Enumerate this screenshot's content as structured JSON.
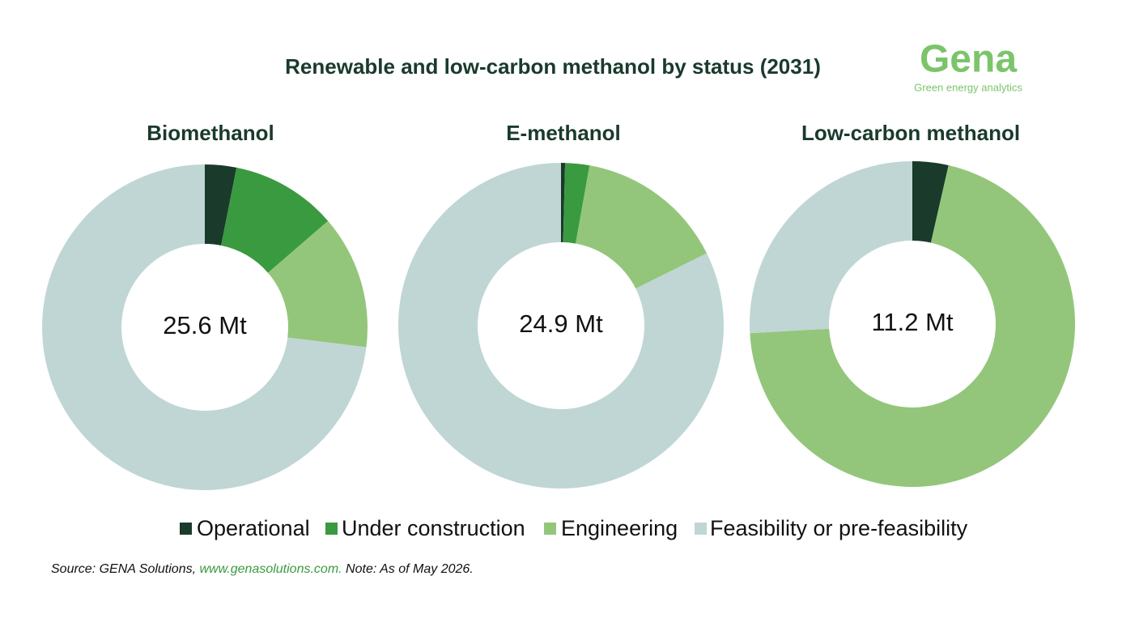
{
  "chart_data": [
    {
      "type": "donut",
      "title": "Biomethanol",
      "center_label": "25.6 Mt",
      "categories": [
        "Operational",
        "Under construction",
        "Engineering",
        "Feasibility or pre-feasibility"
      ],
      "colors": [
        "#1a3a2c",
        "#3a9a40",
        "#93c67b",
        "#bfd6d5"
      ],
      "values": [
        0.8,
        2.7,
        3.4,
        18.7
      ]
    },
    {
      "type": "donut",
      "title": "E-methanol",
      "center_label": "24.9 Mt",
      "categories": [
        "Operational",
        "Under construction",
        "Engineering",
        "Feasibility or pre-feasibility"
      ],
      "colors": [
        "#1a3a2c",
        "#3a9a40",
        "#93c67b",
        "#bfd6d5"
      ],
      "values": [
        0.1,
        0.6,
        3.7,
        20.5
      ]
    },
    {
      "type": "donut",
      "title": "Low-carbon methanol",
      "center_label": "11.2 Mt",
      "categories": [
        "Operational",
        "Under construction",
        "Engineering",
        "Feasibility or pre-feasibility"
      ],
      "colors": [
        "#1a3a2c",
        "#3a9a40",
        "#93c67b",
        "#bfd6d5"
      ],
      "values": [
        0.4,
        0,
        7.9,
        2.9
      ]
    }
  ],
  "header": {
    "title": "Renewable and low-carbon methanol by status (2031)",
    "logo": "Gena",
    "logo_tagline": "Green energy analytics"
  },
  "footer": {
    "source": "Source: GENA Solutions, ",
    "link": "www.genasolutions.com.",
    "note": " Note: As of May 2026."
  }
}
